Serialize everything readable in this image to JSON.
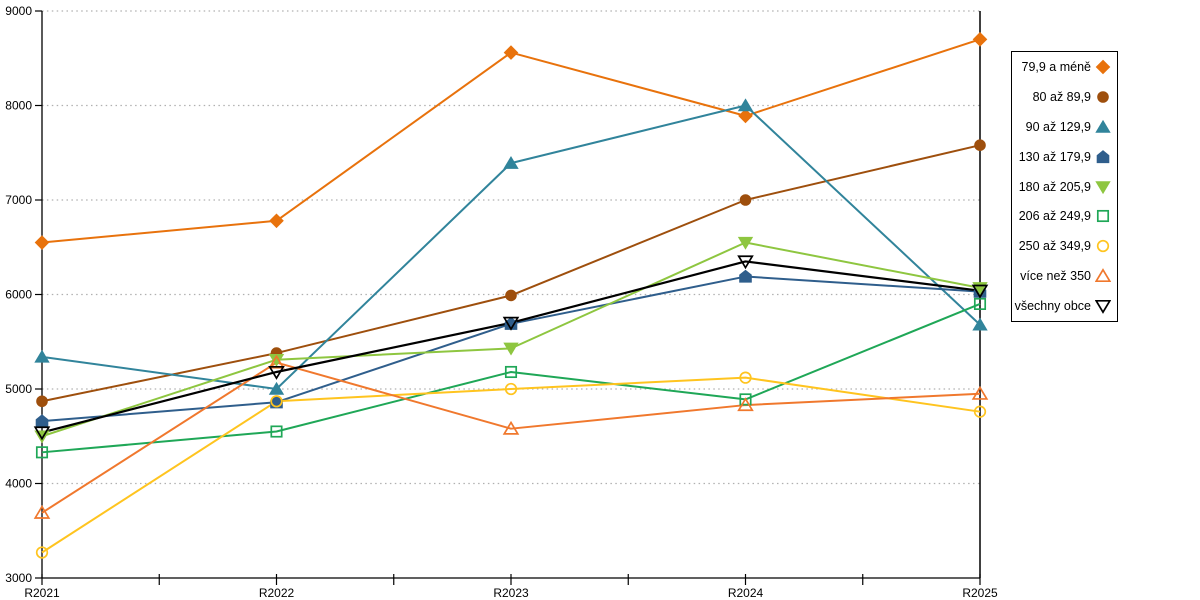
{
  "chart_data": {
    "type": "line",
    "title": "",
    "xlabel": "",
    "ylabel": "",
    "categories": [
      "R2021",
      "R2022",
      "R2023",
      "R2024",
      "R2025"
    ],
    "yticks": [
      "3000",
      "4000",
      "5000",
      "6000",
      "7000",
      "8000",
      "9000"
    ],
    "ylim": [
      3000,
      9000
    ],
    "grid": "horizontal-dotted",
    "legend_position": "right",
    "series": [
      {
        "name": "79,9 a méně",
        "marker": "diamond",
        "filled": true,
        "color": "#E8720C",
        "values": [
          6550,
          6780,
          8560,
          7890,
          8700
        ]
      },
      {
        "name": "80 až 89,9",
        "marker": "circle",
        "filled": true,
        "color": "#9E4F0D",
        "values": [
          4870,
          5380,
          5990,
          7000,
          7580
        ]
      },
      {
        "name": "90 až 129,9",
        "marker": "triangle-up",
        "filled": true,
        "color": "#31849B",
        "values": [
          5340,
          5000,
          7390,
          8000,
          5680
        ]
      },
      {
        "name": "130 až 179,9",
        "marker": "pentagon",
        "filled": true,
        "color": "#2F5E8C",
        "values": [
          4660,
          4860,
          5690,
          6190,
          6030
        ]
      },
      {
        "name": "180 až 205,9",
        "marker": "triangle-down",
        "filled": true,
        "color": "#8EC640",
        "values": [
          4500,
          5310,
          5430,
          6550,
          6070
        ]
      },
      {
        "name": "206 až 249,9",
        "marker": "square",
        "filled": false,
        "color": "#1FA757",
        "values": [
          4330,
          4550,
          5180,
          4890,
          5900
        ]
      },
      {
        "name": "250 až 349,9",
        "marker": "circle",
        "filled": false,
        "color": "#FFC41F",
        "values": [
          3270,
          4870,
          5000,
          5120,
          4760
        ]
      },
      {
        "name": "více než 350",
        "marker": "triangle-up",
        "filled": false,
        "color": "#F0782D",
        "values": [
          3690,
          5280,
          4580,
          4830,
          4950
        ]
      },
      {
        "name": "všechny obce",
        "marker": "triangle-down",
        "filled": false,
        "color": "#000000",
        "values": [
          4540,
          5180,
          5700,
          6350,
          6040
        ]
      }
    ]
  },
  "colors": {
    "axis": "#000000",
    "gridline": "#b0b0b0",
    "background": "#ffffff"
  }
}
